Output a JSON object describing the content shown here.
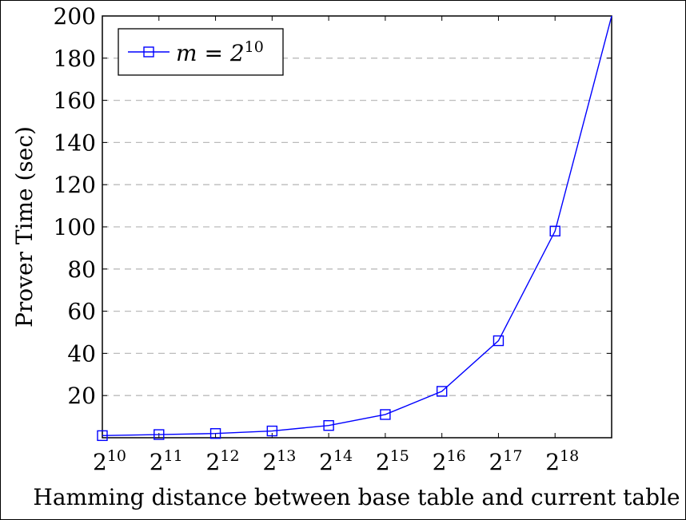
{
  "chart_data": {
    "type": "line",
    "title": "",
    "xlabel": "Hamming distance between base table and current table",
    "ylabel": "Prover Time (sec)",
    "x_scale": "log2",
    "x_ticks": [
      {
        "exp": 10,
        "label": "2",
        "sup": "10"
      },
      {
        "exp": 11,
        "label": "2",
        "sup": "11"
      },
      {
        "exp": 12,
        "label": "2",
        "sup": "12"
      },
      {
        "exp": 13,
        "label": "2",
        "sup": "13"
      },
      {
        "exp": 14,
        "label": "2",
        "sup": "14"
      },
      {
        "exp": 15,
        "label": "2",
        "sup": "15"
      },
      {
        "exp": 16,
        "label": "2",
        "sup": "16"
      },
      {
        "exp": 17,
        "label": "2",
        "sup": "17"
      },
      {
        "exp": 18,
        "label": "2",
        "sup": "18"
      }
    ],
    "y_ticks": [
      20,
      40,
      60,
      80,
      100,
      120,
      140,
      160,
      180,
      200
    ],
    "xlim_exp": [
      10,
      19
    ],
    "ylim": [
      0,
      200
    ],
    "grid": "horizontal dashed",
    "legend_position": "top-left",
    "series": [
      {
        "name_main": "m = 2",
        "name_sup": "10",
        "color": "#0000ff",
        "marker": "square",
        "x_exp": [
          10,
          11,
          12,
          13,
          14,
          15,
          16,
          17,
          18,
          19
        ],
        "y": [
          1,
          1.5,
          2,
          3.2,
          5.8,
          11,
          22,
          46,
          98,
          200
        ]
      }
    ]
  }
}
